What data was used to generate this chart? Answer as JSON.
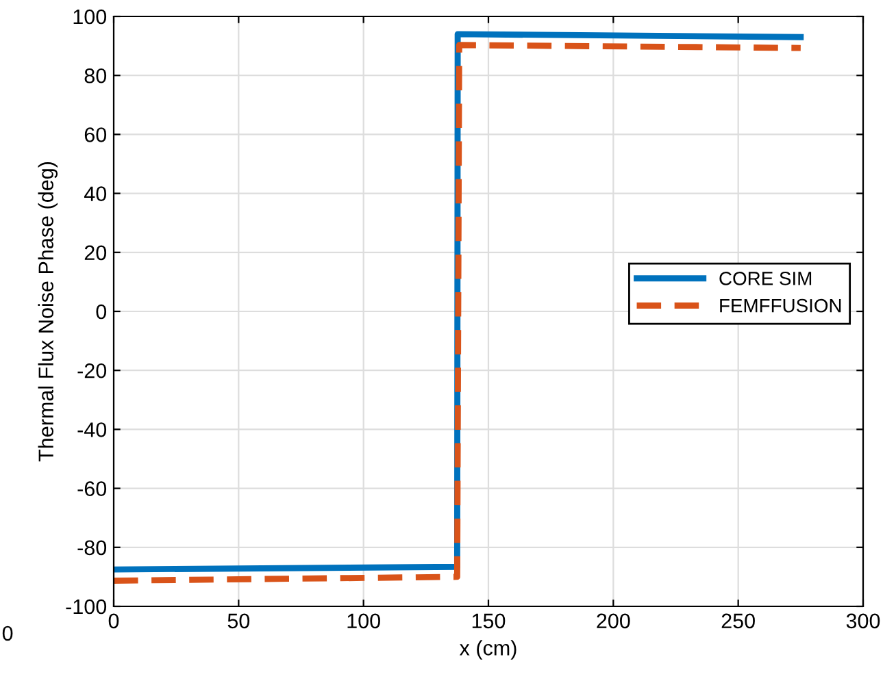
{
  "chart_data": {
    "type": "line",
    "xlabel": "x (cm)",
    "ylabel": "Thermal Flux Noise Phase (deg)",
    "xlim": [
      0,
      300
    ],
    "xticks": [
      0,
      50,
      100,
      150,
      200,
      250,
      300
    ],
    "ylim": [
      -100,
      100
    ],
    "yticks": [
      -100,
      -80,
      -60,
      -40,
      -20,
      0,
      20,
      40,
      60,
      80,
      100
    ],
    "grid": true,
    "legend": "right",
    "annotations": [
      "0"
    ],
    "series": [
      {
        "name": "CORE SIM",
        "color": "#0072bd",
        "line_style": "solid",
        "x": [
          0,
          137.5,
          137.7,
          275
        ],
        "values": [
          -87.5,
          -86.6,
          94,
          93
        ]
      },
      {
        "name": "FEMFFUSION",
        "color": "#d95319",
        "line_style": "dashed",
        "x": [
          0,
          137.5,
          138.3,
          275
        ],
        "values": [
          -91.3,
          -90,
          90.3,
          89.3
        ]
      }
    ]
  }
}
